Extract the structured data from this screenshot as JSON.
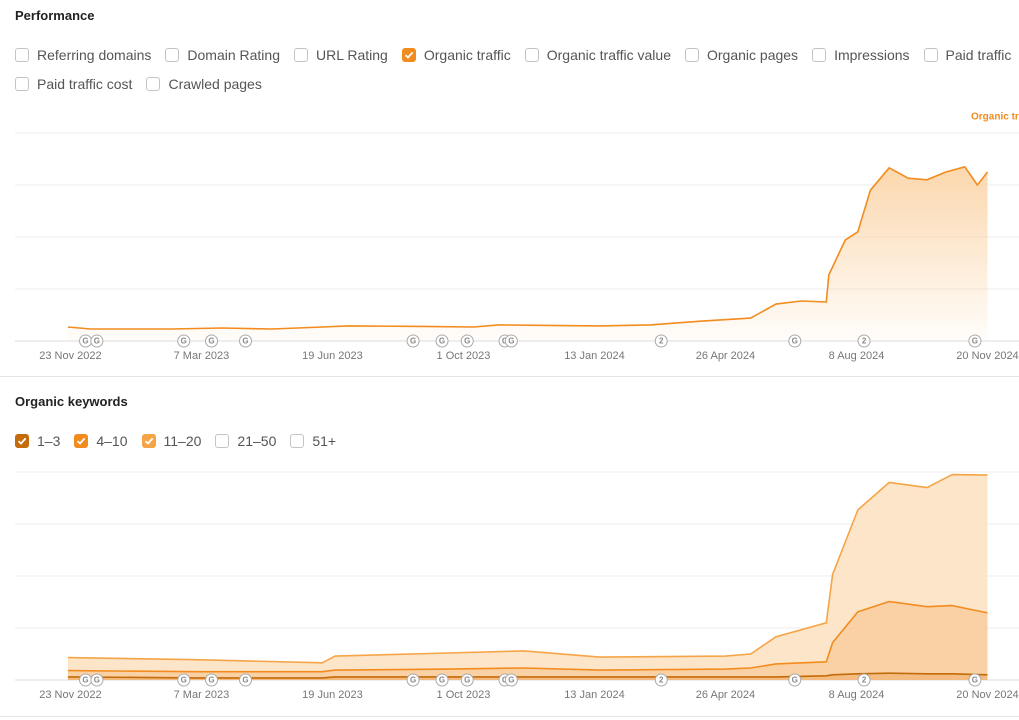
{
  "performance": {
    "title": "Performance",
    "options": [
      {
        "label": "Referring domains",
        "checked": false
      },
      {
        "label": "Domain Rating",
        "checked": false
      },
      {
        "label": "URL Rating",
        "checked": false
      },
      {
        "label": "Organic traffic",
        "checked": true,
        "color": "#f28c1e"
      },
      {
        "label": "Organic traffic value",
        "checked": false
      },
      {
        "label": "Organic pages",
        "checked": false
      },
      {
        "label": "Impressions",
        "checked": false
      },
      {
        "label": "Paid traffic",
        "checked": false
      },
      {
        "label": "Paid traffic cost",
        "checked": false
      },
      {
        "label": "Crawled pages",
        "checked": false
      }
    ]
  },
  "keywords": {
    "title": "Organic keywords",
    "options": [
      {
        "label": "1–3",
        "checked": true,
        "color": "#c46b0a"
      },
      {
        "label": "4–10",
        "checked": true,
        "color": "#f28c1e"
      },
      {
        "label": "11–20",
        "checked": true,
        "color": "#f5a547"
      },
      {
        "label": "21–50",
        "checked": false
      },
      {
        "label": "51+",
        "checked": false
      }
    ]
  },
  "markers": [
    {
      "x": 12,
      "label": "G"
    },
    {
      "x": 21,
      "label": "G"
    },
    {
      "x": 90,
      "label": "G"
    },
    {
      "x": 112,
      "label": "G"
    },
    {
      "x": 139,
      "label": "G"
    },
    {
      "x": 272,
      "label": "G"
    },
    {
      "x": 295,
      "label": "G"
    },
    {
      "x": 315,
      "label": "G"
    },
    {
      "x": 345,
      "label": "G"
    },
    {
      "x": 350,
      "label": "G"
    },
    {
      "x": 469,
      "label": "2"
    },
    {
      "x": 575,
      "label": "G"
    },
    {
      "x": 630,
      "label": "2"
    },
    {
      "x": 718,
      "label": "G"
    }
  ],
  "chart_data": [
    {
      "type": "area",
      "xlim": [
        -44,
        753
      ],
      "ylim": [
        0,
        4
      ],
      "yticks": [
        0,
        1,
        2,
        3,
        4
      ],
      "grid": true,
      "xticks": [
        {
          "value": 0,
          "label": "23 Nov 2022"
        },
        {
          "value": 104,
          "label": "7 Mar 2023"
        },
        {
          "value": 208,
          "label": "19 Jun 2023"
        },
        {
          "value": 312,
          "label": "1 Oct 2023"
        },
        {
          "value": 416,
          "label": "13 Jan 2024"
        },
        {
          "value": 520,
          "label": "26 Apr 2024"
        },
        {
          "value": 624,
          "label": "8 Aug 2024"
        },
        {
          "value": 728,
          "label": "20 Nov 2024"
        }
      ],
      "x": [
        -2,
        16,
        40,
        80,
        120,
        160,
        200,
        220,
        280,
        320,
        340,
        380,
        420,
        460,
        500,
        540,
        560,
        580,
        600,
        602,
        615,
        625,
        635,
        650,
        665,
        680,
        695,
        710,
        720,
        728
      ],
      "series": [
        {
          "name": "Organic traffic",
          "color": "#f28c1e",
          "fill": "#fbd3a4",
          "values": [
            0.27,
            0.23,
            0.23,
            0.23,
            0.25,
            0.23,
            0.27,
            0.29,
            0.28,
            0.27,
            0.31,
            0.3,
            0.29,
            0.31,
            0.38,
            0.44,
            0.71,
            0.77,
            0.75,
            1.27,
            1.94,
            2.1,
            2.9,
            3.33,
            3.13,
            3.1,
            3.25,
            3.35,
            3.0,
            3.25
          ]
        }
      ]
    },
    {
      "type": "stacked-area",
      "xlim": [
        -44,
        753
      ],
      "ylim": [
        0,
        4
      ],
      "yticks": [
        0,
        1,
        2,
        3,
        4
      ],
      "grid": true,
      "xticks": [
        {
          "value": 0,
          "label": "23 Nov 2022"
        },
        {
          "value": 104,
          "label": "7 Mar 2023"
        },
        {
          "value": 208,
          "label": "19 Jun 2023"
        },
        {
          "value": 312,
          "label": "1 Oct 2023"
        },
        {
          "value": 416,
          "label": "13 Jan 2024"
        },
        {
          "value": 520,
          "label": "26 Apr 2024"
        },
        {
          "value": 624,
          "label": "8 Aug 2024"
        },
        {
          "value": 728,
          "label": "20 Nov 2024"
        }
      ],
      "x": [
        -2,
        100,
        200,
        210,
        300,
        360,
        420,
        520,
        540,
        560,
        600,
        605,
        625,
        650,
        680,
        700,
        728
      ],
      "series": [
        {
          "name": "1–3",
          "color": "#c46b0a",
          "fill": "#f2b06a",
          "values": [
            0.06,
            0.04,
            0.04,
            0.06,
            0.06,
            0.06,
            0.06,
            0.06,
            0.06,
            0.06,
            0.08,
            0.1,
            0.12,
            0.13,
            0.12,
            0.12,
            0.1
          ]
        },
        {
          "name": "4–10",
          "color": "#f28c1e",
          "fill": "#f9c995",
          "values": [
            0.12,
            0.12,
            0.12,
            0.13,
            0.15,
            0.17,
            0.13,
            0.15,
            0.17,
            0.25,
            0.27,
            0.62,
            1.19,
            1.38,
            1.29,
            1.31,
            1.19
          ]
        },
        {
          "name": "11–20",
          "color": "#f5a547",
          "fill": "#fde0bf",
          "values": [
            0.25,
            0.23,
            0.17,
            0.27,
            0.31,
            0.33,
            0.25,
            0.25,
            0.27,
            0.52,
            0.75,
            1.31,
            1.96,
            2.29,
            2.29,
            2.52,
            2.65
          ]
        }
      ]
    }
  ]
}
